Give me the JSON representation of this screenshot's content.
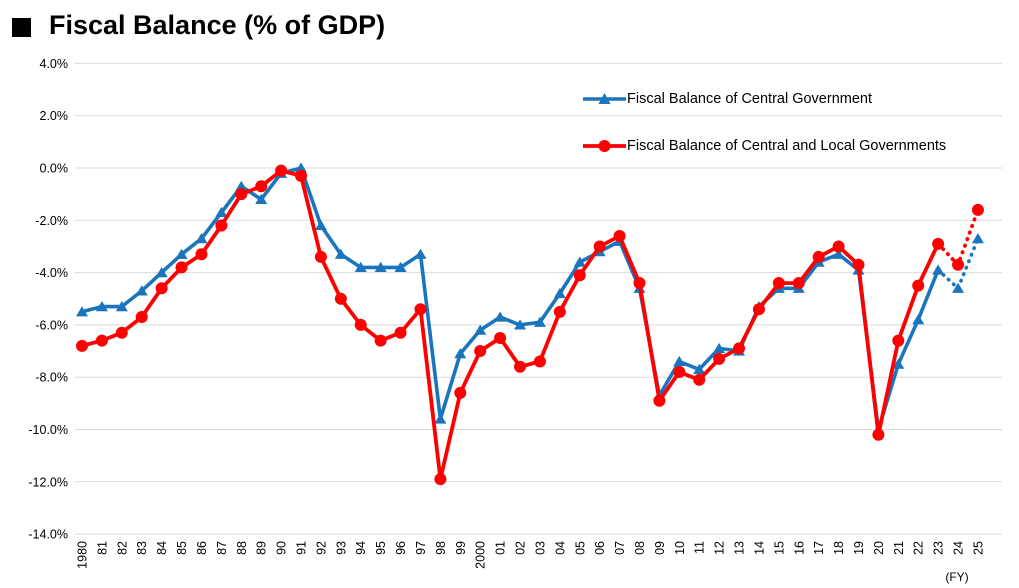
{
  "header": {
    "bullet_icon": "black-square",
    "title": "Fiscal Balance (% of GDP)"
  },
  "chart_data": {
    "type": "line",
    "title": "Fiscal Balance (% of GDP)",
    "grid": true,
    "legend_position": "top-right-inside",
    "x_axis": {
      "unit_label": "(FY)",
      "categories": [
        "1980",
        "81",
        "82",
        "83",
        "84",
        "85",
        "86",
        "87",
        "88",
        "89",
        "90",
        "91",
        "92",
        "93",
        "94",
        "95",
        "96",
        "97",
        "98",
        "99",
        "2000",
        "01",
        "02",
        "03",
        "04",
        "05",
        "06",
        "07",
        "08",
        "09",
        "10",
        "11",
        "12",
        "13",
        "14",
        "15",
        "16",
        "17",
        "18",
        "19",
        "20",
        "21",
        "22",
        "23",
        "24",
        "25"
      ]
    },
    "y_axis": {
      "min": -14.0,
      "max": 4.0,
      "step": 2.0,
      "format": "percent",
      "tick_labels": [
        "4.0%",
        "2.0%",
        "0.0%",
        "-2.0%",
        "-4.0%",
        "-6.0%",
        "-8.0%",
        "-10.0%",
        "-12.0%",
        "-14.0%"
      ]
    },
    "dotted_from_category": "23",
    "series": [
      {
        "name": "Fiscal Balance of Central Government",
        "color": "#1b75bc",
        "marker": "triangle",
        "values": [
          -5.5,
          -5.3,
          -5.3,
          -4.7,
          -4.0,
          -3.3,
          -2.7,
          -1.7,
          -0.7,
          -1.2,
          -0.2,
          0.0,
          -2.2,
          -3.3,
          -3.8,
          -3.8,
          -3.8,
          -3.3,
          -9.6,
          -7.1,
          -6.2,
          -5.7,
          -6.0,
          -5.9,
          -4.8,
          -3.6,
          -3.2,
          -2.8,
          -4.6,
          -8.7,
          -7.4,
          -7.7,
          -6.9,
          -7.0,
          -5.3,
          -4.6,
          -4.6,
          -3.6,
          -3.3,
          -3.9,
          -10.0,
          -7.5,
          -5.8,
          -3.9,
          -4.6,
          -2.7
        ]
      },
      {
        "name": "Fiscal Balance of Central and Local Governments",
        "color": "#fe0000",
        "marker": "circle",
        "values": [
          -6.8,
          -6.6,
          -6.3,
          -5.7,
          -4.6,
          -3.8,
          -3.3,
          -2.2,
          -1.0,
          -0.7,
          -0.1,
          -0.3,
          -3.4,
          -5.0,
          -6.0,
          -6.6,
          -6.3,
          -5.4,
          -11.9,
          -8.6,
          -7.0,
          -6.5,
          -7.6,
          -7.4,
          -5.5,
          -4.1,
          -3.0,
          -2.6,
          -4.4,
          -8.9,
          -7.8,
          -8.1,
          -7.3,
          -6.9,
          -5.4,
          -4.4,
          -4.4,
          -3.4,
          -3.0,
          -3.7,
          -10.2,
          -6.6,
          -4.5,
          -2.9,
          -3.7,
          -1.6
        ]
      }
    ],
    "style": {
      "gridline_color": "#d9d9d9",
      "axis_text_color": "#000000"
    }
  }
}
